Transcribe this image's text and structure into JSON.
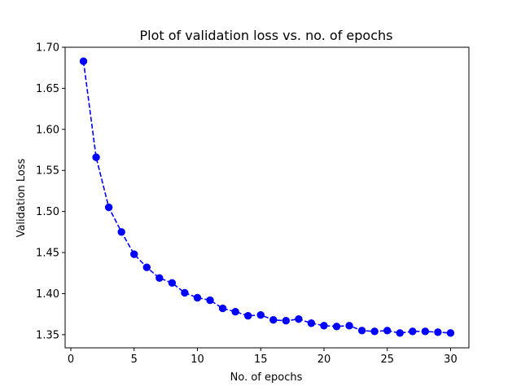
{
  "chart_data": {
    "type": "line",
    "title": "Plot of validation loss vs. no. of epochs",
    "xlabel": "No. of epochs",
    "ylabel": "Validation Loss",
    "xlim": [
      -0.45,
      31.45
    ],
    "ylim": [
      1.334,
      1.7
    ],
    "xticks": [
      0,
      5,
      10,
      15,
      20,
      25,
      30
    ],
    "yticks": [
      1.35,
      1.4,
      1.45,
      1.5,
      1.55,
      1.6,
      1.65,
      1.7
    ],
    "ytick_labels": [
      "1.35",
      "1.40",
      "1.45",
      "1.50",
      "1.55",
      "1.60",
      "1.65",
      "1.70"
    ],
    "grid": false,
    "series": [
      {
        "color": "#0000ff",
        "line_style": "dashed",
        "marker": "circle",
        "x": [
          1,
          2,
          3,
          4,
          5,
          6,
          7,
          8,
          9,
          10,
          11,
          12,
          13,
          14,
          15,
          16,
          17,
          18,
          19,
          20,
          21,
          22,
          23,
          24,
          25,
          26,
          27,
          28,
          29,
          30
        ],
        "y": [
          1.683,
          1.566,
          1.505,
          1.475,
          1.448,
          1.432,
          1.419,
          1.413,
          1.401,
          1.395,
          1.392,
          1.382,
          1.378,
          1.373,
          1.374,
          1.368,
          1.367,
          1.369,
          1.364,
          1.361,
          1.36,
          1.361,
          1.355,
          1.354,
          1.355,
          1.352,
          1.354,
          1.354,
          1.353,
          1.352
        ]
      }
    ]
  }
}
